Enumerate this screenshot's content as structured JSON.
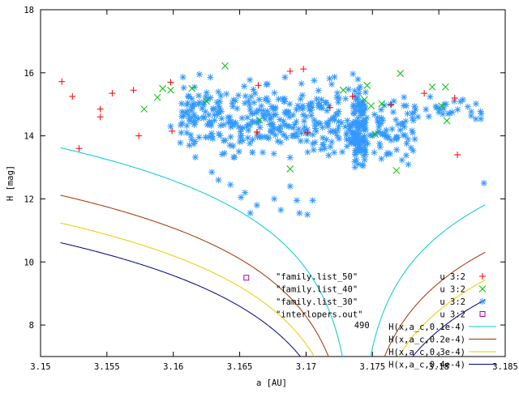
{
  "chart_data": {
    "type": "scatter",
    "title": "",
    "xlabel": "a [AU]",
    "ylabel": "H [mag]",
    "xlim": [
      3.15,
      3.185
    ],
    "ylim": [
      7,
      18
    ],
    "x_ticks": [
      "3.15",
      "3.155",
      "3.16",
      "3.165",
      "3.17",
      "3.175",
      "3.18",
      "3.185"
    ],
    "y_ticks": [
      "8",
      "10",
      "12",
      "14",
      "16",
      "18"
    ],
    "grid": false,
    "legend_placement": "bottom-right",
    "series": [
      {
        "name": "u 3:2",
        "marker": "plus",
        "color": "#ff0000",
        "points": [
          [
            3.1516,
            15.72
          ],
          [
            3.1524,
            15.25
          ],
          [
            3.1529,
            13.6
          ],
          [
            3.1545,
            14.85
          ],
          [
            3.1545,
            14.6
          ],
          [
            3.1554,
            15.35
          ],
          [
            3.157,
            15.45
          ],
          [
            3.1574,
            14.0
          ],
          [
            3.1598,
            15.7
          ],
          [
            3.1599,
            14.15
          ],
          [
            3.1663,
            14.12
          ],
          [
            3.1664,
            15.6
          ],
          [
            3.1688,
            16.05
          ],
          [
            3.1698,
            16.12
          ],
          [
            3.1701,
            14.1
          ],
          [
            3.1718,
            14.9
          ],
          [
            3.1735,
            15.25
          ],
          [
            3.1764,
            14.98
          ],
          [
            3.1789,
            15.35
          ],
          [
            3.1812,
            15.2
          ],
          [
            3.1814,
            13.4
          ]
        ]
      },
      {
        "name": "u 3:2",
        "marker": "cross",
        "color": "#00c000",
        "points": [
          [
            3.1578,
            14.85
          ],
          [
            3.1588,
            15.22
          ],
          [
            3.1592,
            15.5
          ],
          [
            3.1598,
            15.45
          ],
          [
            3.1614,
            15.5
          ],
          [
            3.1625,
            15.1
          ],
          [
            3.1639,
            16.22
          ],
          [
            3.1665,
            14.5
          ],
          [
            3.1688,
            12.95
          ],
          [
            3.1728,
            15.45
          ],
          [
            3.1744,
            15.15
          ],
          [
            3.1746,
            15.6
          ],
          [
            3.1749,
            14.95
          ],
          [
            3.1752,
            14.05
          ],
          [
            3.1757,
            15.02
          ],
          [
            3.1768,
            12.9
          ],
          [
            3.1771,
            15.98
          ],
          [
            3.1795,
            15.55
          ],
          [
            3.1802,
            14.95
          ],
          [
            3.1806,
            14.48
          ],
          [
            3.1805,
            15.55
          ]
        ]
      },
      {
        "name": "u 3:2",
        "marker": "star",
        "color": "#3399ff",
        "generated_cloud": {
          "rng_seed": 20240611,
          "count": 560,
          "clusters": [
            {
              "x_range": [
                3.1605,
                3.1725
              ],
              "y_range": [
                12.9,
                16.2
              ],
              "n": 320
            },
            {
              "x_range": [
                3.1725,
                3.1783
              ],
              "y_range": [
                12.7,
                15.7
              ],
              "n": 110
            },
            {
              "x_range": [
                3.1783,
                3.1832
              ],
              "y_range": [
                14.3,
                15.4
              ],
              "n": 28
            },
            {
              "x_range": [
                3.1735,
                3.1745
              ],
              "y_range": [
                12.2,
                16.4
              ],
              "n": 102
            }
          ]
        },
        "points": [
          [
            3.1629,
            12.85
          ],
          [
            3.1643,
            12.45
          ],
          [
            3.1651,
            12.05
          ],
          [
            3.1658,
            11.55
          ],
          [
            3.1663,
            11.8
          ],
          [
            3.1676,
            12.0
          ],
          [
            3.1688,
            12.4
          ],
          [
            3.1695,
            11.55
          ],
          [
            3.1701,
            11.5
          ],
          [
            3.1705,
            11.95
          ],
          [
            3.1681,
            11.65
          ],
          [
            3.1634,
            12.6
          ],
          [
            3.1834,
            12.5
          ],
          [
            3.1654,
            12.2
          ],
          [
            3.1693,
            11.95
          ],
          [
            3.1598,
            14.3
          ],
          [
            3.1606,
            14.1
          ],
          [
            3.1612,
            13.7
          ],
          [
            3.1619,
            14.55
          ],
          [
            3.1615,
            15.0
          ]
        ]
      },
      {
        "name": "u 3:2",
        "marker": "square",
        "color": "#b000b0",
        "points": [
          [
            3.1655,
            9.5
          ]
        ]
      }
    ],
    "curves": [
      {
        "name": "H(x,a_c,0.1e-4)",
        "color": "#00cccc",
        "C": 1e-05
      },
      {
        "name": "H(x,a_c,0.2e-4)",
        "color": "#a03000",
        "C": 2e-05
      },
      {
        "name": "H(x,a_c,0.3e-4)",
        "color": "#e0d000",
        "C": 3e-05
      },
      {
        "name": "H(x,a_c,0.4e-4)",
        "color": "#000080",
        "C": 4e-05
      }
    ],
    "curve_center_a": 3.1738,
    "curve_c0": -3.12,
    "family_labels": [
      "\"family.list_50\"",
      "\"family.list_40\"",
      "\"family.list_30\"",
      "\"interlopers.out\""
    ],
    "annotation": {
      "text": "490",
      "x": 3.1742,
      "y": 7.9
    }
  }
}
